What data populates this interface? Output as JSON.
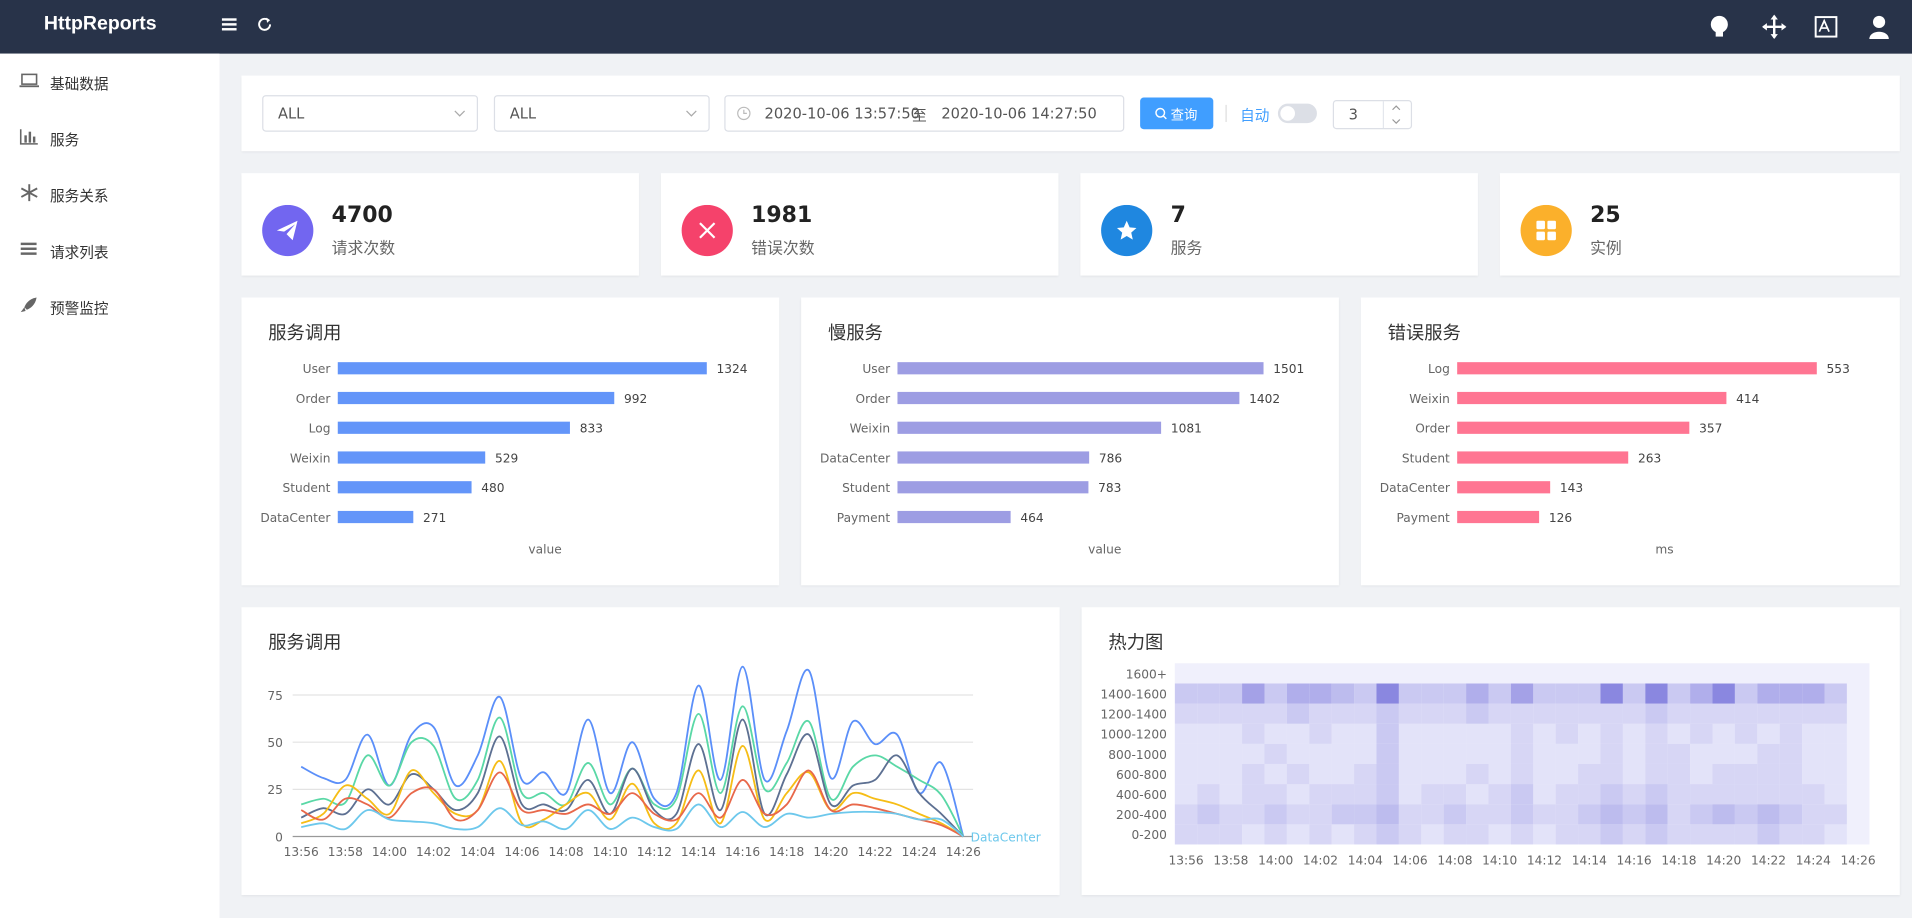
{
  "header": {
    "brand": "HttpReports"
  },
  "sidebar": {
    "items": [
      "基础数据",
      "服务",
      "服务关系",
      "请求列表",
      "预警监控"
    ]
  },
  "filters": {
    "service": "ALL",
    "instance": "ALL",
    "start": "2020-10-06 13:57:50",
    "separator": "至",
    "end": "2020-10-06 14:27:50",
    "query_button": "查询",
    "auto_label": "自动",
    "interval": 3
  },
  "stats": [
    {
      "value": 4700,
      "label": "请求次数",
      "color": "#7266f0"
    },
    {
      "value": 1981,
      "label": "错误次数",
      "color": "#f5426b"
    },
    {
      "value": 7,
      "label": "服务",
      "color": "#1f87e0"
    },
    {
      "value": 25,
      "label": "实例",
      "color": "#fbb02b"
    }
  ],
  "chart_data": [
    {
      "type": "bar",
      "orientation": "horizontal",
      "title": "服务调用",
      "categories": [
        "User",
        "Order",
        "Log",
        "Weixin",
        "Student",
        "DataCenter"
      ],
      "values": [
        1324,
        992,
        833,
        529,
        480,
        271
      ],
      "color": "#6395f9",
      "xlim": [
        0,
        1400
      ],
      "x_label": "value"
    },
    {
      "type": "bar",
      "orientation": "horizontal",
      "title": "慢服务",
      "categories": [
        "User",
        "Order",
        "Weixin",
        "DataCenter",
        "Student",
        "Payment"
      ],
      "values": [
        1501,
        1402,
        1081,
        786,
        783,
        464
      ],
      "color": "#9d9de3",
      "xlim": [
        0,
        1600
      ],
      "x_label": "value"
    },
    {
      "type": "bar",
      "orientation": "horizontal",
      "title": "错误服务",
      "categories": [
        "Log",
        "Weixin",
        "Order",
        "Student",
        "DataCenter",
        "Payment"
      ],
      "values": [
        553,
        414,
        357,
        263,
        143,
        126
      ],
      "color": "#ff7592",
      "xlim": [
        0,
        600
      ],
      "x_label": "ms"
    },
    {
      "type": "line",
      "title": "服务调用",
      "x": [
        "13:56",
        null,
        "13:58",
        null,
        "14:00",
        null,
        "14:02",
        null,
        "14:04",
        null,
        "14:06",
        null,
        "14:08",
        null,
        "14:10",
        null,
        "14:12",
        null,
        "14:14",
        null,
        "14:16",
        null,
        "14:18",
        null,
        "14:20",
        null,
        "14:22",
        null,
        "14:24",
        null,
        "14:26"
      ],
      "ylim": [
        0,
        100
      ],
      "yticks": [
        0,
        25,
        50,
        75
      ],
      "grid": true,
      "series": [
        {
          "color": "#5b8ff9",
          "values": [
            37,
            31,
            30,
            54,
            27,
            54,
            58,
            27,
            43,
            74,
            30,
            34,
            23,
            62,
            23,
            50,
            20,
            23,
            80,
            30,
            90,
            30,
            56,
            88,
            31,
            61,
            49,
            54,
            23,
            39,
            0
          ]
        },
        {
          "color": "#5ad8a6",
          "values": [
            17,
            20,
            18,
            43,
            27,
            50,
            48,
            20,
            30,
            63,
            23,
            23,
            17,
            39,
            17,
            36,
            17,
            20,
            65,
            23,
            69,
            25,
            39,
            61,
            20,
            37,
            43,
            37,
            30,
            22,
            0
          ]
        },
        {
          "color": "#5d7092",
          "values": [
            10,
            15,
            12,
            25,
            17,
            33,
            25,
            14,
            23,
            53,
            17,
            17,
            14,
            30,
            12,
            36,
            14,
            12,
            49,
            14,
            62,
            12,
            33,
            54,
            17,
            27,
            30,
            43,
            23,
            12,
            0
          ]
        },
        {
          "color": "#f6bd16",
          "values": [
            7,
            12,
            27,
            20,
            12,
            35,
            23,
            12,
            14,
            40,
            7,
            9,
            17,
            23,
            9,
            28,
            7,
            7,
            35,
            7,
            48,
            9,
            23,
            34,
            14,
            23,
            20,
            17,
            12,
            7,
            0
          ]
        },
        {
          "color": "#e8684a",
          "values": [
            14,
            9,
            20,
            17,
            10,
            23,
            25,
            9,
            14,
            34,
            14,
            14,
            12,
            17,
            12,
            23,
            12,
            9,
            23,
            10,
            30,
            12,
            17,
            35,
            14,
            17,
            15,
            12,
            9,
            6,
            0
          ]
        },
        {
          "name": "DataCenter",
          "color": "#6dc8ec",
          "values": [
            5,
            7,
            4,
            14,
            9,
            8,
            7,
            4,
            5,
            15,
            6,
            8,
            4,
            14,
            4,
            10,
            5,
            4,
            17,
            5,
            13,
            5,
            12,
            10,
            12,
            13,
            13,
            12,
            9,
            9,
            0
          ]
        }
      ]
    },
    {
      "type": "heatmap",
      "title": "热力图",
      "x": [
        "13:56",
        null,
        "13:58",
        null,
        "14:00",
        null,
        "14:02",
        null,
        "14:04",
        null,
        "14:06",
        null,
        "14:08",
        null,
        "14:10",
        null,
        "14:12",
        null,
        "14:14",
        null,
        "14:16",
        null,
        "14:18",
        null,
        "14:20",
        null,
        "14:22",
        null,
        "14:24",
        null,
        "14:26"
      ],
      "y_categories": [
        "0-200",
        "200-400",
        "400-600",
        "600-800",
        "800-1000",
        "1000-1200",
        "1200-1400",
        "1400-1600",
        "1600+"
      ],
      "color": "#8a87e0",
      "values": [
        [
          2,
          2,
          2,
          1,
          2,
          1,
          2,
          1,
          2,
          3,
          2,
          1,
          2,
          2,
          1,
          2,
          1,
          2,
          2,
          3,
          2,
          3,
          2,
          2,
          2,
          2,
          3,
          2,
          2,
          1,
          0
        ],
        [
          2,
          3,
          2,
          2,
          3,
          2,
          2,
          3,
          3,
          4,
          2,
          2,
          3,
          2,
          2,
          3,
          2,
          2,
          3,
          4,
          3,
          4,
          2,
          3,
          4,
          3,
          4,
          3,
          2,
          2,
          0
        ],
        [
          1,
          2,
          1,
          2,
          2,
          1,
          2,
          2,
          2,
          3,
          1,
          2,
          2,
          1,
          2,
          3,
          1,
          2,
          2,
          3,
          2,
          3,
          2,
          2,
          2,
          2,
          2,
          2,
          2,
          1,
          0
        ],
        [
          1,
          1,
          1,
          2,
          1,
          2,
          1,
          1,
          2,
          3,
          1,
          1,
          1,
          2,
          1,
          2,
          1,
          1,
          2,
          2,
          1,
          2,
          2,
          1,
          2,
          2,
          2,
          2,
          1,
          1,
          0
        ],
        [
          1,
          1,
          1,
          1,
          2,
          1,
          1,
          1,
          1,
          3,
          1,
          1,
          1,
          1,
          1,
          2,
          1,
          1,
          1,
          2,
          1,
          2,
          2,
          1,
          1,
          1,
          2,
          2,
          1,
          1,
          0
        ],
        [
          1,
          1,
          1,
          2,
          1,
          1,
          2,
          1,
          1,
          3,
          1,
          1,
          1,
          1,
          1,
          2,
          1,
          2,
          1,
          2,
          1,
          2,
          1,
          2,
          1,
          2,
          1,
          2,
          1,
          1,
          0
        ],
        [
          2,
          2,
          2,
          2,
          2,
          3,
          2,
          2,
          2,
          3,
          2,
          2,
          2,
          3,
          2,
          2,
          2,
          2,
          2,
          2,
          2,
          3,
          2,
          2,
          2,
          2,
          2,
          2,
          2,
          2,
          0
        ],
        [
          3,
          3,
          3,
          6,
          3,
          5,
          5,
          4,
          3,
          8,
          3,
          3,
          3,
          5,
          3,
          6,
          3,
          3,
          3,
          8,
          3,
          8,
          3,
          5,
          8,
          3,
          5,
          5,
          5,
          3,
          0
        ],
        [
          0,
          0,
          0,
          0,
          0,
          0,
          0,
          0,
          0,
          0,
          0,
          0,
          0,
          0,
          0,
          0,
          0,
          0,
          0,
          0,
          0,
          0,
          0,
          0,
          0,
          0,
          0,
          0,
          0,
          0,
          0
        ]
      ]
    }
  ]
}
